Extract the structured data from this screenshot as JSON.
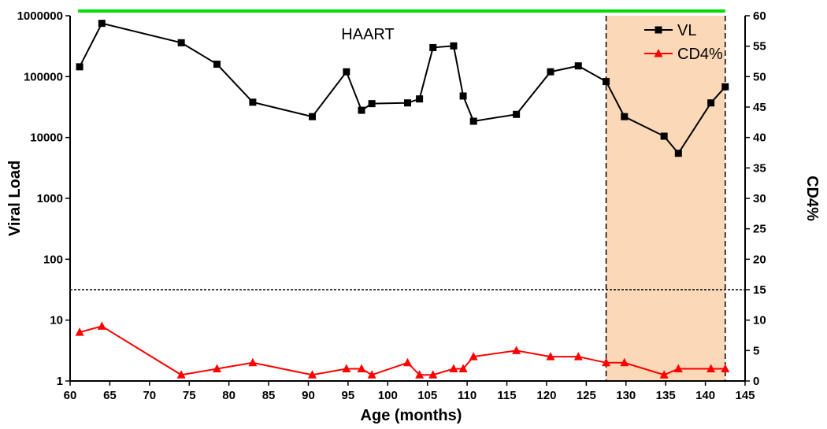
{
  "chart_data": {
    "type": "line",
    "title": "",
    "xlabel": "Age (months)",
    "ylabel_left": "Viral Load",
    "ylabel_right": "CD4%",
    "xlim": [
      60,
      145
    ],
    "ylim_left": [
      1,
      1000000
    ],
    "yscale_left": "log",
    "ylim_right": [
      0,
      60
    ],
    "x_ticks": [
      "60",
      "65",
      "70",
      "75",
      "80",
      "85",
      "90",
      "95",
      "100",
      "105",
      "110",
      "115",
      "120",
      "125",
      "130",
      "135",
      "140",
      "145"
    ],
    "y_left_ticks": [
      "1",
      "10",
      "100",
      "1000",
      "10000",
      "100000",
      "1000000"
    ],
    "y_right_ticks": [
      "0",
      "5",
      "10",
      "15",
      "20",
      "25",
      "30",
      "35",
      "40",
      "45",
      "50",
      "55",
      "60"
    ],
    "legend_position": "top-right",
    "annotation": "HAART",
    "colors": {
      "vl": "#000000",
      "cd4": "#ff0000",
      "haart_bar": "#00dd00",
      "shaded_region": "#fbd9b8"
    },
    "haart_bar": {
      "x_start": 61,
      "x_end": 142.5
    },
    "shaded_region": {
      "x_start": 127.5,
      "x_end": 142.5
    },
    "threshold_line_cd4": 15,
    "series": [
      {
        "name": "VL",
        "axis": "left",
        "marker": "square",
        "x": [
          61.2,
          64,
          74,
          78.5,
          83,
          90.5,
          94.8,
          96.7,
          98,
          102.5,
          104,
          105.7,
          108.3,
          109.5,
          110.8,
          116.2,
          120.5,
          124,
          127.5,
          129.8,
          134.8,
          136.6,
          140.7,
          142.5
        ],
        "values": [
          145000,
          750000,
          360000,
          160000,
          38000,
          22000,
          120000,
          28000,
          36000,
          37000,
          43000,
          300000,
          320000,
          48000,
          18500,
          24000,
          120000,
          150000,
          83000,
          22000,
          10500,
          5500,
          37000,
          68000
        ]
      },
      {
        "name": "CD4%",
        "axis": "right",
        "marker": "triangle",
        "x": [
          61.2,
          64,
          74,
          78.5,
          83,
          90.5,
          94.8,
          96.7,
          98,
          102.5,
          104,
          105.7,
          108.3,
          109.5,
          110.8,
          116.2,
          120.5,
          124,
          127.5,
          129.8,
          134.8,
          136.6,
          140.7,
          142.5
        ],
        "values": [
          8,
          9,
          1,
          2,
          3,
          1,
          2,
          2,
          1,
          3,
          1,
          1,
          2,
          2,
          4,
          5,
          4,
          4,
          3,
          3,
          1,
          2,
          2,
          2
        ]
      }
    ]
  }
}
